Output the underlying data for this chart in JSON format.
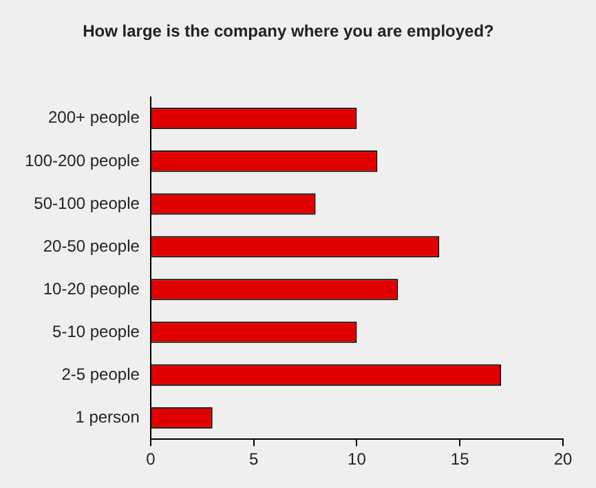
{
  "chart_data": {
    "type": "bar",
    "orientation": "horizontal",
    "title": "How large is the company where you are employed?",
    "categories": [
      "200+ people",
      "100-200 people",
      "50-100 people",
      "20-50 people",
      "10-20 people",
      "5-10 people",
      "2-5 people",
      "1 person"
    ],
    "values": [
      10,
      11,
      8,
      14,
      12,
      10,
      17,
      3
    ],
    "color": "#e00000",
    "xlim": [
      0,
      20
    ],
    "xticks": [
      0,
      5,
      10,
      15,
      20
    ],
    "grid": false,
    "legend": false
  }
}
